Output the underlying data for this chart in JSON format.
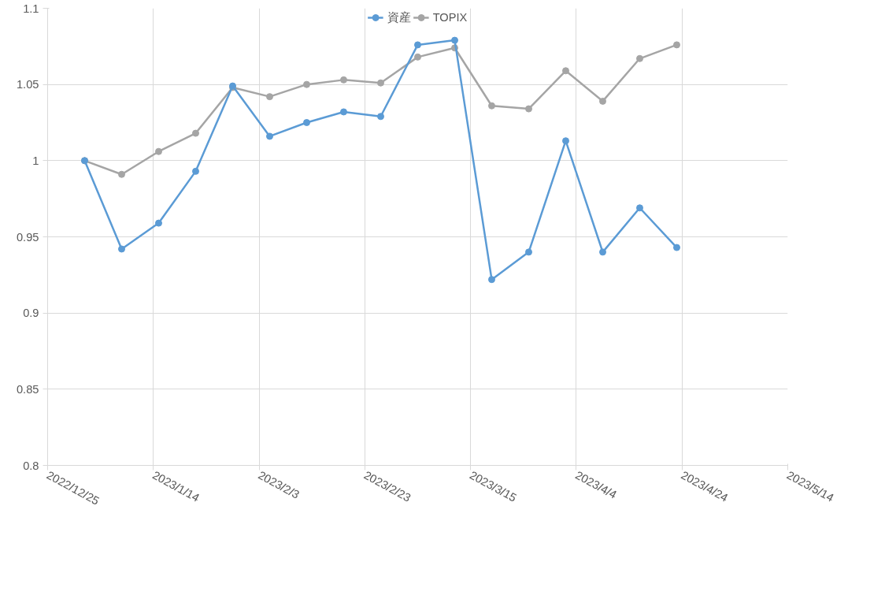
{
  "chart_data": {
    "type": "line",
    "x": [
      "2023-01-01",
      "2023-01-08",
      "2023-01-15",
      "2023-01-22",
      "2023-01-29",
      "2023-02-05",
      "2023-02-12",
      "2023-02-19",
      "2023-02-26",
      "2023-03-05",
      "2023-03-12",
      "2023-03-19",
      "2023-03-26",
      "2023-04-02",
      "2023-04-09",
      "2023-04-16",
      "2023-04-23"
    ],
    "series": [
      {
        "name": "資産",
        "color": "#5b9bd5",
        "values": [
          1.0,
          0.942,
          0.959,
          0.993,
          1.049,
          1.016,
          1.025,
          1.032,
          1.029,
          1.076,
          1.079,
          0.922,
          0.94,
          1.013,
          0.94,
          0.969,
          0.943
        ]
      },
      {
        "name": "TOPIX",
        "color": "#a5a5a5",
        "values": [
          1.0,
          0.991,
          1.006,
          1.018,
          1.048,
          1.042,
          1.05,
          1.053,
          1.051,
          1.068,
          1.074,
          1.036,
          1.034,
          1.059,
          1.039,
          1.067,
          1.076
        ]
      }
    ],
    "xlim": [
      "2022-12-25",
      "2023-05-14"
    ],
    "xticks": [
      {
        "value": "2022-12-25",
        "label": "2022/12/25"
      },
      {
        "value": "2023-01-14",
        "label": "2023/1/14"
      },
      {
        "value": "2023-02-03",
        "label": "2023/2/3"
      },
      {
        "value": "2023-02-23",
        "label": "2023/2/23"
      },
      {
        "value": "2023-03-15",
        "label": "2023/3/15"
      },
      {
        "value": "2023-04-04",
        "label": "2023/4/4"
      },
      {
        "value": "2023-04-24",
        "label": "2023/4/24"
      },
      {
        "value": "2023-05-14",
        "label": "2023/5/14"
      }
    ],
    "ylim": [
      0.8,
      1.1
    ],
    "yticks": [
      0.8,
      {
        "value": 0.85,
        "label": "0.85"
      },
      0.9,
      {
        "value": 0.95,
        "label": "0.95"
      },
      1,
      {
        "value": 1.05,
        "label": "1.05"
      },
      1.1
    ],
    "grid": true,
    "legend": "top",
    "marker": "circle",
    "line_style": "solid"
  }
}
